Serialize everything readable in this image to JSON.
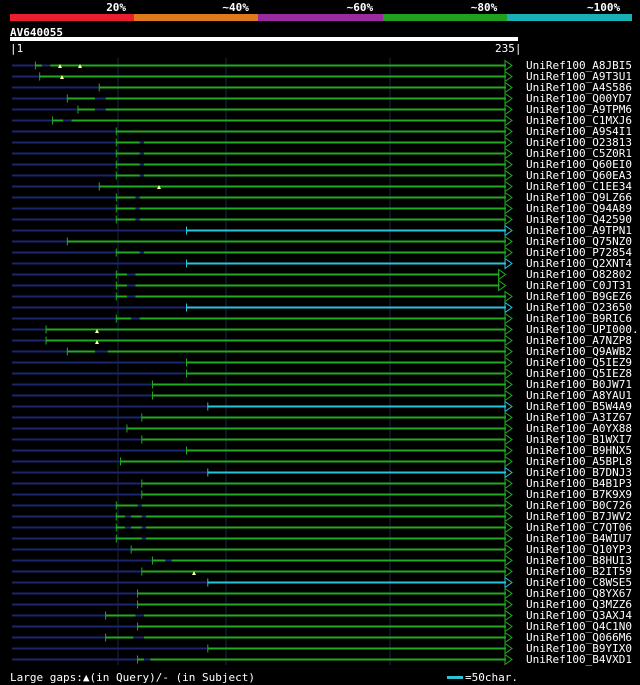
{
  "legend": [
    {
      "label": "20%",
      "color": "#e8202e"
    },
    {
      "label": "~40%",
      "color": "#e0781c"
    },
    {
      "label": "~60%",
      "color": "#9a2a9e"
    },
    {
      "label": "~80%",
      "color": "#1fa01f"
    },
    {
      "label": "~100%",
      "color": "#1ab0b8"
    }
  ],
  "query": {
    "id": "AV640055",
    "start": "1",
    "end": "235",
    "length": 235
  },
  "colors": {
    "hit": "#22aa22",
    "hit_full": "#2ac4d6",
    "tail": "#1a2670",
    "grid": "#16264a",
    "triangle": "#ffffa0"
  },
  "hits": [
    {
      "label": "UniRef100_A8JBI5",
      "start": 12,
      "end": 235,
      "tail": true,
      "gaps": [
        [
          15,
          4
        ]
      ],
      "tri": false
    },
    {
      "label": "UniRef100_A9T3U1",
      "start": 14,
      "end": 235,
      "tail": true,
      "gaps": [],
      "tri": false
    },
    {
      "label": "UniRef100_A4S586",
      "start": 42,
      "end": 235,
      "tail": true,
      "gaps": [],
      "tri": false
    },
    {
      "label": "UniRef100_Q00YD7",
      "start": 27,
      "end": 235,
      "tail": false,
      "gaps": [
        [
          40,
          5
        ]
      ],
      "tri": false
    },
    {
      "label": "UniRef100_A9TPM6",
      "start": 32,
      "end": 235,
      "tail": false,
      "gaps": [
        [
          40,
          5
        ]
      ],
      "tri": false
    },
    {
      "label": "UniRef100_C1MXJ6",
      "start": 20,
      "end": 235,
      "tail": false,
      "gaps": [
        [
          25,
          4
        ]
      ],
      "tri": false
    },
    {
      "label": "UniRef100_A9S4I1",
      "start": 50,
      "end": 235,
      "tail": false,
      "gaps": [],
      "tri": false
    },
    {
      "label": "UniRef100_O23813",
      "start": 50,
      "end": 235,
      "tail": false,
      "gaps": [
        [
          61,
          2
        ]
      ],
      "tri": false
    },
    {
      "label": "UniRef100_C5Z0R1",
      "start": 50,
      "end": 235,
      "tail": false,
      "gaps": [
        [
          61,
          2
        ]
      ],
      "tri": false
    },
    {
      "label": "UniRef100_Q60EI0",
      "start": 50,
      "end": 235,
      "tail": false,
      "gaps": [
        [
          61,
          2
        ]
      ],
      "tri": false
    },
    {
      "label": "UniRef100_Q60EA3",
      "start": 50,
      "end": 235,
      "tail": false,
      "gaps": [
        [
          61,
          2
        ]
      ],
      "tri": false
    },
    {
      "label": "UniRef100_C1EE34",
      "start": 42,
      "end": 235,
      "tail": false,
      "gaps": [],
      "tri": false
    },
    {
      "label": "UniRef100_Q9LZ66",
      "start": 50,
      "end": 235,
      "tail": false,
      "gaps": [
        [
          59,
          2
        ]
      ],
      "tri": false
    },
    {
      "label": "UniRef100_Q94A89",
      "start": 50,
      "end": 235,
      "tail": false,
      "gaps": [
        [
          59,
          2
        ]
      ],
      "tri": false
    },
    {
      "label": "UniRef100_Q42590",
      "start": 50,
      "end": 235,
      "tail": false,
      "gaps": [
        [
          59,
          2
        ]
      ],
      "tri": false
    },
    {
      "label": "UniRef100_A9TPN1",
      "start": 83,
      "end": 235,
      "tail": false,
      "gaps": [],
      "tri": false,
      "full": true
    },
    {
      "label": "UniRef100_Q75NZ0",
      "start": 27,
      "end": 235,
      "tail": false,
      "gaps": [],
      "tri": false
    },
    {
      "label": "UniRef100_P72854",
      "start": 50,
      "end": 235,
      "tail": false,
      "gaps": [
        [
          61,
          2
        ]
      ],
      "tri": false
    },
    {
      "label": "UniRef100_Q2XNT4",
      "start": 83,
      "end": 235,
      "tail": false,
      "gaps": [],
      "tri": false,
      "full": true
    },
    {
      "label": "UniRef100_O82802",
      "start": 50,
      "end": 232,
      "tail": false,
      "gaps": [
        [
          55,
          4
        ]
      ],
      "tri": true
    },
    {
      "label": "UniRef100_C0JT31",
      "start": 50,
      "end": 232,
      "tail": false,
      "gaps": [
        [
          55,
          4
        ]
      ],
      "tri": true
    },
    {
      "label": "UniRef100_B9GEZ6",
      "start": 50,
      "end": 235,
      "tail": false,
      "gaps": [
        [
          55,
          4
        ]
      ],
      "tri": false
    },
    {
      "label": "UniRef100_O23650",
      "start": 83,
      "end": 235,
      "tail": false,
      "gaps": [],
      "tri": false,
      "full": true
    },
    {
      "label": "UniRef100_B9RIC6",
      "start": 50,
      "end": 235,
      "tail": false,
      "gaps": [
        [
          57,
          4
        ]
      ],
      "tri": false
    },
    {
      "label": "UniRef100_UPI000..",
      "start": 17,
      "end": 235,
      "tail": false,
      "gaps": [],
      "tri": false
    },
    {
      "label": "UniRef100_A7NZP8",
      "start": 17,
      "end": 235,
      "tail": false,
      "gaps": [],
      "tri": false
    },
    {
      "label": "UniRef100_Q9AWB2",
      "start": 27,
      "end": 235,
      "tail": false,
      "gaps": [
        [
          40,
          6
        ]
      ],
      "tri": false
    },
    {
      "label": "UniRef100_Q5IEZ9",
      "start": 83,
      "end": 235,
      "tail": false,
      "gaps": [],
      "tri": false
    },
    {
      "label": "UniRef100_Q5IEZ8",
      "start": 83,
      "end": 235,
      "tail": false,
      "gaps": [],
      "tri": false
    },
    {
      "label": "UniRef100_B0JW71",
      "start": 67,
      "end": 235,
      "tail": false,
      "gaps": [],
      "tri": false
    },
    {
      "label": "UniRef100_A8YAU1",
      "start": 67,
      "end": 235,
      "tail": false,
      "gaps": [],
      "tri": false
    },
    {
      "label": "UniRef100_B5W4A9",
      "start": 93,
      "end": 235,
      "tail": false,
      "gaps": [],
      "tri": false,
      "full": true
    },
    {
      "label": "UniRef100_A3IZ67",
      "start": 62,
      "end": 235,
      "tail": false,
      "gaps": [],
      "tri": false
    },
    {
      "label": "UniRef100_A0YX88",
      "start": 55,
      "end": 235,
      "tail": false,
      "gaps": [],
      "tri": false
    },
    {
      "label": "UniRef100_B1WXI7",
      "start": 62,
      "end": 235,
      "tail": false,
      "gaps": [],
      "tri": false
    },
    {
      "label": "UniRef100_B9HNX5",
      "start": 83,
      "end": 235,
      "tail": false,
      "gaps": [],
      "tri": false
    },
    {
      "label": "UniRef100_A5BPL8",
      "start": 52,
      "end": 235,
      "tail": false,
      "gaps": [],
      "tri": false
    },
    {
      "label": "UniRef100_B7DNJ3",
      "start": 93,
      "end": 235,
      "tail": false,
      "gaps": [],
      "tri": false,
      "full": true
    },
    {
      "label": "UniRef100_B4B1P3",
      "start": 62,
      "end": 235,
      "tail": false,
      "gaps": [],
      "tri": false
    },
    {
      "label": "UniRef100_B7K9X9",
      "start": 62,
      "end": 235,
      "tail": false,
      "gaps": [],
      "tri": false
    },
    {
      "label": "UniRef100_B0C726",
      "start": 50,
      "end": 235,
      "tail": false,
      "gaps": [
        [
          60,
          2
        ]
      ],
      "tri": false
    },
    {
      "label": "UniRef100_B7JWV2",
      "start": 50,
      "end": 235,
      "tail": false,
      "gaps": [
        [
          54,
          3
        ],
        [
          62,
          2
        ]
      ],
      "tri": false
    },
    {
      "label": "UniRef100_C7QT06",
      "start": 50,
      "end": 235,
      "tail": false,
      "gaps": [
        [
          54,
          3
        ],
        [
          62,
          2
        ]
      ],
      "tri": false
    },
    {
      "label": "UniRef100_B4WIU7",
      "start": 50,
      "end": 235,
      "tail": false,
      "gaps": [
        [
          62,
          2
        ]
      ],
      "tri": false
    },
    {
      "label": "UniRef100_Q10YP3",
      "start": 57,
      "end": 235,
      "tail": false,
      "gaps": [],
      "tri": false
    },
    {
      "label": "UniRef100_B8HUI3",
      "start": 67,
      "end": 235,
      "tail": false,
      "gaps": [
        [
          73,
          3
        ]
      ],
      "tri": false
    },
    {
      "label": "UniRef100_B2IT59",
      "start": 62,
      "end": 235,
      "tail": false,
      "gaps": [],
      "tri": false
    },
    {
      "label": "UniRef100_C8WSE5",
      "start": 93,
      "end": 235,
      "tail": false,
      "gaps": [],
      "tri": false,
      "full": true
    },
    {
      "label": "UniRef100_Q8YX67",
      "start": 60,
      "end": 235,
      "tail": false,
      "gaps": [],
      "tri": false
    },
    {
      "label": "UniRef100_Q3MZZ6",
      "start": 60,
      "end": 235,
      "tail": false,
      "gaps": [],
      "tri": false
    },
    {
      "label": "UniRef100_Q3AXJ4",
      "start": 45,
      "end": 235,
      "tail": false,
      "gaps": [
        [
          59,
          4
        ]
      ],
      "tri": false
    },
    {
      "label": "UniRef100_Q4C1N0",
      "start": 60,
      "end": 235,
      "tail": false,
      "gaps": [],
      "tri": false
    },
    {
      "label": "UniRef100_Q066M6",
      "start": 45,
      "end": 235,
      "tail": false,
      "gaps": [
        [
          58,
          5
        ]
      ],
      "tri": false
    },
    {
      "label": "UniRef100_B9YIX0",
      "start": 93,
      "end": 235,
      "tail": false,
      "gaps": [],
      "tri": false
    },
    {
      "label": "UniRef100_B4VXD1",
      "start": 60,
      "end": 235,
      "tail": false,
      "gaps": [
        [
          63,
          3
        ]
      ],
      "tri": false
    }
  ],
  "footer": {
    "gaps_text": "Large gaps:▲(in Query)/- (in Subject)",
    "scale_text": "=50char."
  }
}
